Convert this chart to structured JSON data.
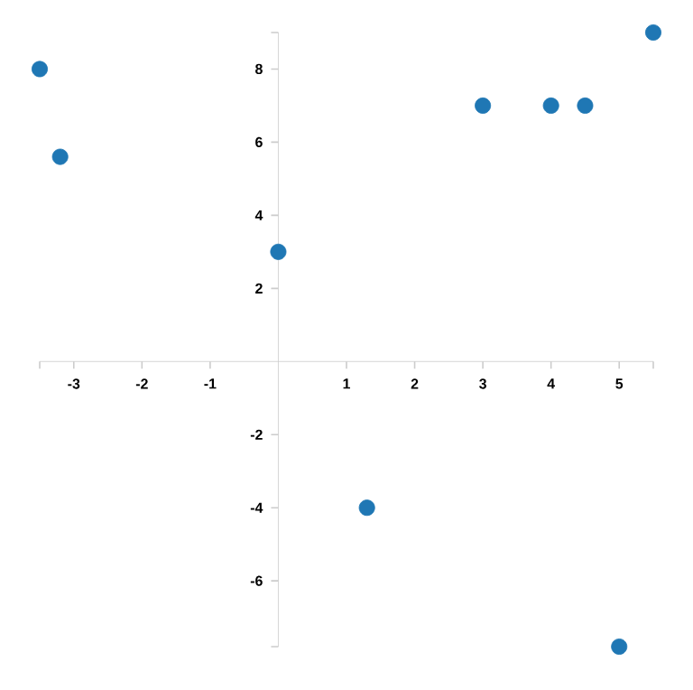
{
  "chart_data": {
    "type": "scatter",
    "x": [
      -3.5,
      -3.2,
      0,
      1.3,
      3,
      4,
      4.5,
      5,
      5.5
    ],
    "values": [
      8,
      5.6,
      3,
      -4,
      7,
      7,
      7,
      -7.8,
      9
    ],
    "color": "#1f77b4",
    "marker": "circle",
    "grid": false,
    "xlim": [
      -3.5,
      5.5
    ],
    "ylim": [
      -7.8,
      9
    ],
    "xticks": [
      {
        "value": -3.5,
        "label": null
      },
      -3,
      -2,
      -1,
      1,
      2,
      3,
      4,
      5,
      {
        "value": 5.5,
        "label": null
      }
    ],
    "yticks": [
      {
        "value": -7.8,
        "label": null
      },
      -6,
      -4,
      -2,
      2,
      4,
      6,
      8,
      {
        "value": 9,
        "label": null
      }
    ]
  }
}
